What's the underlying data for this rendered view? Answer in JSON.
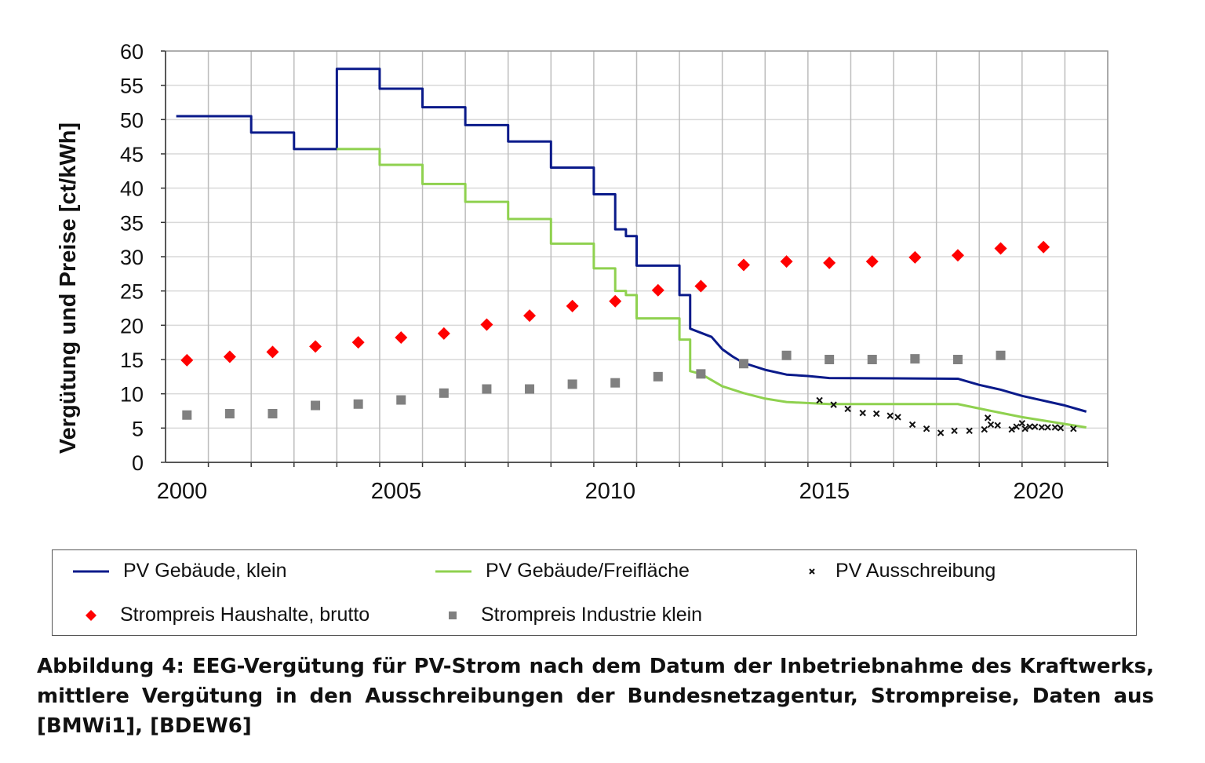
{
  "chart_data": {
    "type": "line",
    "ylabel": "Vergütung und Preise [ct/kWh]",
    "xlabel": "",
    "ylim": [
      0,
      60
    ],
    "yticks": [
      0,
      5,
      10,
      15,
      20,
      25,
      30,
      35,
      40,
      45,
      50,
      55,
      60
    ],
    "xlim": [
      2000,
      2022
    ],
    "xticks": [
      2000,
      2005,
      2010,
      2015,
      2020
    ],
    "grid": true,
    "legend_placement": "bottom",
    "series": [
      {
        "name": "PV Gebäude, klein",
        "kind": "step",
        "color": "#0a1a8a",
        "points": [
          [
            2000.25,
            50.5
          ],
          [
            2002,
            50.5
          ],
          [
            2002,
            48.1
          ],
          [
            2003,
            48.1
          ],
          [
            2003,
            45.7
          ],
          [
            2004,
            45.7
          ],
          [
            2004,
            57.4
          ],
          [
            2005,
            57.4
          ],
          [
            2005,
            54.5
          ],
          [
            2006,
            54.5
          ],
          [
            2006,
            51.8
          ],
          [
            2007,
            51.8
          ],
          [
            2007,
            49.2
          ],
          [
            2008,
            49.2
          ],
          [
            2008,
            46.8
          ],
          [
            2009,
            46.8
          ],
          [
            2009,
            43.0
          ],
          [
            2010,
            43.0
          ],
          [
            2010,
            39.1
          ],
          [
            2010.5,
            39.1
          ],
          [
            2010.5,
            34.0
          ],
          [
            2010.75,
            34.0
          ],
          [
            2010.75,
            33.0
          ],
          [
            2011,
            33.0
          ],
          [
            2011,
            28.7
          ],
          [
            2012,
            28.7
          ],
          [
            2012,
            24.4
          ],
          [
            2012.25,
            24.4
          ],
          [
            2012.25,
            19.5
          ],
          [
            2012.5,
            18.9
          ],
          [
            2012.75,
            18.3
          ],
          [
            2013,
            16.5
          ],
          [
            2013.25,
            15.4
          ],
          [
            2013.5,
            14.5
          ],
          [
            2014,
            13.5
          ],
          [
            2014.5,
            12.8
          ],
          [
            2015,
            12.6
          ],
          [
            2015.5,
            12.3
          ],
          [
            2018.5,
            12.2
          ],
          [
            2019,
            11.3
          ],
          [
            2019.5,
            10.6
          ],
          [
            2020,
            9.7
          ],
          [
            2021,
            8.3
          ],
          [
            2021.5,
            7.4
          ]
        ]
      },
      {
        "name": "PV Gebäude/Freifläche",
        "kind": "step",
        "color": "#8fd14f",
        "points": [
          [
            2004,
            45.7
          ],
          [
            2005,
            45.7
          ],
          [
            2005,
            43.4
          ],
          [
            2006,
            43.4
          ],
          [
            2006,
            40.6
          ],
          [
            2007,
            40.6
          ],
          [
            2007,
            38.0
          ],
          [
            2008,
            38.0
          ],
          [
            2008,
            35.5
          ],
          [
            2009,
            35.5
          ],
          [
            2009,
            31.9
          ],
          [
            2010,
            31.9
          ],
          [
            2010,
            28.3
          ],
          [
            2010.5,
            28.3
          ],
          [
            2010.5,
            25.0
          ],
          [
            2010.75,
            25.0
          ],
          [
            2010.75,
            24.4
          ],
          [
            2011,
            24.4
          ],
          [
            2011,
            21.0
          ],
          [
            2012,
            21.0
          ],
          [
            2012,
            17.9
          ],
          [
            2012.25,
            17.9
          ],
          [
            2012.25,
            13.3
          ],
          [
            2012.5,
            12.9
          ],
          [
            2013,
            11.1
          ],
          [
            2013.5,
            10.1
          ],
          [
            2014,
            9.3
          ],
          [
            2014.5,
            8.8
          ],
          [
            2015.5,
            8.5
          ],
          [
            2018.5,
            8.5
          ],
          [
            2019.2,
            7.6
          ],
          [
            2020,
            6.6
          ],
          [
            2021.5,
            5.1
          ]
        ]
      },
      {
        "name": "PV Ausschreibung",
        "kind": "scatter",
        "marker": "x",
        "color": "#111111",
        "points": [
          [
            2015.27,
            9.05
          ],
          [
            2015.6,
            8.4
          ],
          [
            2015.93,
            7.8
          ],
          [
            2016.28,
            7.2
          ],
          [
            2016.6,
            7.1
          ],
          [
            2016.92,
            6.8
          ],
          [
            2017.1,
            6.6
          ],
          [
            2017.44,
            5.5
          ],
          [
            2017.77,
            4.9
          ],
          [
            2018.1,
            4.3
          ],
          [
            2018.42,
            4.6
          ],
          [
            2018.77,
            4.6
          ],
          [
            2019.12,
            4.8
          ],
          [
            2019.2,
            6.5
          ],
          [
            2019.27,
            5.5
          ],
          [
            2019.43,
            5.4
          ],
          [
            2019.76,
            4.8
          ],
          [
            2019.87,
            5.2
          ],
          [
            2020.0,
            5.7
          ],
          [
            2020.07,
            4.9
          ],
          [
            2020.18,
            5.2
          ],
          [
            2020.3,
            5.2
          ],
          [
            2020.46,
            5.1
          ],
          [
            2020.6,
            5.1
          ],
          [
            2020.77,
            5.1
          ],
          [
            2020.9,
            5.0
          ],
          [
            2021.2,
            4.9
          ]
        ]
      },
      {
        "name": "Strompreis Haushalte, brutto",
        "kind": "scatter",
        "marker": "diamond",
        "color": "#ff0000",
        "x": [
          2000,
          2001,
          2002,
          2003,
          2004,
          2005,
          2006,
          2007,
          2008,
          2009,
          2010,
          2011,
          2012,
          2013,
          2014,
          2015,
          2016,
          2017,
          2018,
          2019,
          2020
        ],
        "values": [
          14.9,
          15.4,
          16.1,
          16.9,
          17.5,
          18.2,
          18.8,
          20.1,
          21.4,
          22.8,
          23.5,
          25.1,
          25.7,
          28.8,
          29.3,
          29.1,
          29.3,
          29.9,
          30.2,
          31.2,
          31.4
        ]
      },
      {
        "name": "Strompreis Industrie klein",
        "kind": "scatter",
        "marker": "square",
        "color": "#808080",
        "x": [
          2000,
          2001,
          2002,
          2003,
          2004,
          2005,
          2006,
          2007,
          2008,
          2009,
          2010,
          2011,
          2012,
          2013,
          2014,
          2015,
          2016,
          2017,
          2018,
          2019
        ],
        "values": [
          6.9,
          7.1,
          7.1,
          8.3,
          8.5,
          9.1,
          10.1,
          10.7,
          10.7,
          11.4,
          11.6,
          12.5,
          12.9,
          14.4,
          15.6,
          15.0,
          15.0,
          15.1,
          15.0,
          15.6
        ]
      }
    ]
  },
  "caption": "Abbildung 4: EEG-Vergütung für PV-Strom nach dem Datum der Inbetriebnahme des Kraftwerks, mittlere Vergütung in den Ausschreibungen der Bundesnetzagentur, Strompreise, Daten aus [BMWi1], [BDEW6]"
}
